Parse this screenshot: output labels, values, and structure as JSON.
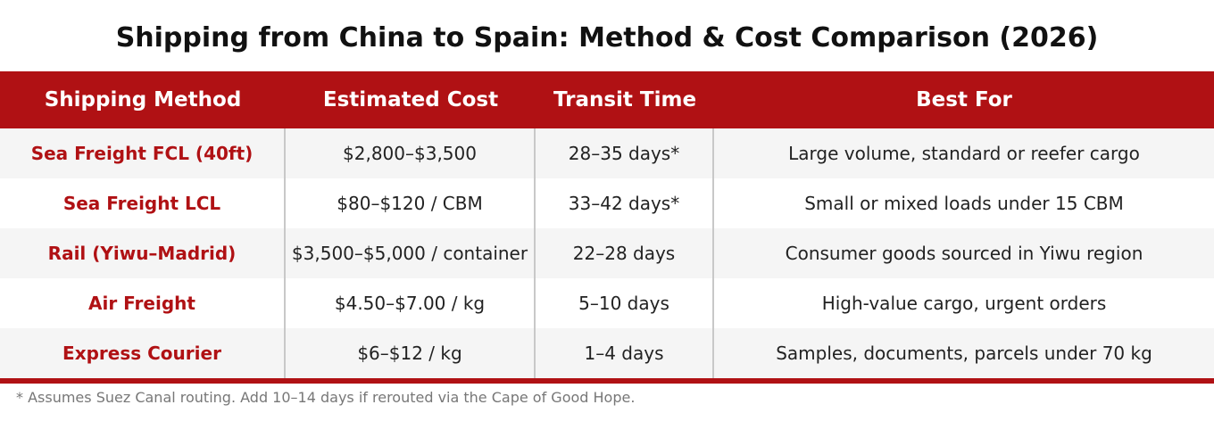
{
  "title": "Shipping from China to Spain: Method & Cost Comparison (2026)",
  "colors": {
    "accent": "#b01114",
    "stripe": "#f5f5f5",
    "divider": "#c8c8c8",
    "footnote": "#777777"
  },
  "table": {
    "headers": [
      "Shipping Method",
      "Estimated Cost",
      "Transit Time",
      "Best For"
    ],
    "rows": [
      [
        "Sea Freight FCL (40ft)",
        "$2,800–$3,500",
        "28–35 days*",
        "Large volume, standard or reefer cargo"
      ],
      [
        "Sea Freight LCL",
        "$80–$120 / CBM",
        "33–42 days*",
        "Small or mixed loads under 15 CBM"
      ],
      [
        "Rail (Yiwu–Madrid)",
        "$3,500–$5,000 / container",
        "22–28 days",
        "Consumer goods sourced in Yiwu region"
      ],
      [
        "Air Freight",
        "$4.50–$7.00 / kg",
        "5–10 days",
        "High-value cargo, urgent orders"
      ],
      [
        "Express Courier",
        "$6–$12 / kg",
        "1–4 days",
        "Samples, documents, parcels under 70 kg"
      ]
    ]
  },
  "footnote": "* Assumes Suez Canal routing. Add 10–14 days if rerouted via the Cape of Good Hope."
}
